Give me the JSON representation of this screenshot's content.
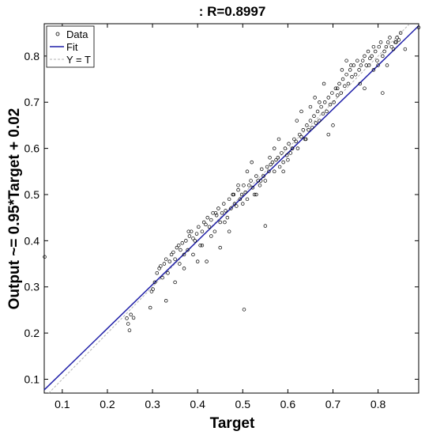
{
  "chart_data": {
    "type": "scatter",
    "title": ": R=0.8997",
    "xlabel": "Target",
    "ylabel": "Output ~= 0.95*Target + 0.02",
    "xlim": [
      0.06,
      0.89
    ],
    "ylim": [
      0.07,
      0.87
    ],
    "xticks": [
      0.1,
      0.2,
      0.3,
      0.4,
      0.5,
      0.6,
      0.7,
      0.8
    ],
    "yticks": [
      0.1,
      0.2,
      0.3,
      0.4,
      0.5,
      0.6,
      0.7,
      0.8
    ],
    "grid": false,
    "legend_position": "top-left",
    "legend": [
      "Data",
      "Fit",
      "Y = T"
    ],
    "colors": {
      "data": "#000000",
      "fit": "#1f1fa8",
      "identity": "#b4b4b4"
    },
    "fit": {
      "slope": 0.95,
      "intercept": 0.02
    },
    "series": [
      {
        "name": "Data",
        "x": [
          0.061,
          0.243,
          0.246,
          0.249,
          0.252,
          0.258,
          0.295,
          0.298,
          0.301,
          0.305,
          0.31,
          0.315,
          0.318,
          0.322,
          0.326,
          0.33,
          0.334,
          0.338,
          0.342,
          0.346,
          0.35,
          0.354,
          0.358,
          0.362,
          0.366,
          0.37,
          0.374,
          0.378,
          0.382,
          0.386,
          0.39,
          0.394,
          0.398,
          0.402,
          0.406,
          0.41,
          0.414,
          0.418,
          0.422,
          0.426,
          0.43,
          0.434,
          0.438,
          0.442,
          0.446,
          0.45,
          0.454,
          0.458,
          0.462,
          0.466,
          0.47,
          0.474,
          0.478,
          0.482,
          0.486,
          0.49,
          0.494,
          0.498,
          0.502,
          0.506,
          0.51,
          0.514,
          0.518,
          0.522,
          0.526,
          0.53,
          0.534,
          0.538,
          0.542,
          0.546,
          0.55,
          0.554,
          0.558,
          0.562,
          0.566,
          0.57,
          0.574,
          0.578,
          0.582,
          0.586,
          0.59,
          0.594,
          0.598,
          0.602,
          0.606,
          0.61,
          0.614,
          0.618,
          0.622,
          0.626,
          0.63,
          0.634,
          0.638,
          0.642,
          0.646,
          0.65,
          0.654,
          0.658,
          0.662,
          0.666,
          0.67,
          0.674,
          0.678,
          0.682,
          0.686,
          0.69,
          0.694,
          0.698,
          0.702,
          0.706,
          0.71,
          0.714,
          0.718,
          0.722,
          0.726,
          0.73,
          0.734,
          0.738,
          0.742,
          0.746,
          0.75,
          0.754,
          0.758,
          0.762,
          0.766,
          0.77,
          0.774,
          0.778,
          0.782,
          0.786,
          0.79,
          0.794,
          0.798,
          0.802,
          0.806,
          0.81,
          0.814,
          0.818,
          0.822,
          0.826,
          0.83,
          0.834,
          0.838,
          0.842,
          0.846,
          0.85,
          0.86,
          0.89,
          0.503,
          0.55,
          0.33,
          0.42,
          0.45,
          0.47,
          0.52,
          0.58,
          0.62,
          0.66,
          0.68,
          0.73,
          0.76,
          0.8,
          0.81,
          0.38,
          0.4,
          0.43,
          0.46,
          0.48,
          0.53,
          0.56,
          0.6,
          0.64,
          0.7,
          0.72,
          0.78,
          0.82,
          0.35,
          0.37,
          0.44,
          0.49,
          0.51,
          0.57,
          0.61,
          0.63,
          0.65,
          0.67,
          0.69,
          0.71,
          0.74,
          0.77,
          0.79,
          0.84,
          0.36,
          0.39,
          0.41,
          0.5,
          0.54,
          0.59
        ],
        "y": [
          0.365,
          0.232,
          0.22,
          0.206,
          0.24,
          0.233,
          0.255,
          0.29,
          0.295,
          0.31,
          0.33,
          0.34,
          0.345,
          0.32,
          0.35,
          0.36,
          0.33,
          0.355,
          0.37,
          0.375,
          0.36,
          0.385,
          0.39,
          0.38,
          0.395,
          0.37,
          0.4,
          0.38,
          0.41,
          0.42,
          0.405,
          0.4,
          0.415,
          0.43,
          0.39,
          0.42,
          0.44,
          0.435,
          0.45,
          0.43,
          0.445,
          0.46,
          0.42,
          0.455,
          0.47,
          0.44,
          0.46,
          0.48,
          0.465,
          0.45,
          0.49,
          0.47,
          0.5,
          0.48,
          0.475,
          0.51,
          0.49,
          0.5,
          0.52,
          0.505,
          0.49,
          0.52,
          0.53,
          0.515,
          0.5,
          0.54,
          0.53,
          0.52,
          0.555,
          0.54,
          0.53,
          0.56,
          0.55,
          0.565,
          0.57,
          0.55,
          0.575,
          0.58,
          0.56,
          0.59,
          0.57,
          0.6,
          0.585,
          0.61,
          0.59,
          0.6,
          0.62,
          0.615,
          0.6,
          0.63,
          0.625,
          0.64,
          0.62,
          0.65,
          0.64,
          0.66,
          0.645,
          0.67,
          0.655,
          0.68,
          0.66,
          0.69,
          0.675,
          0.7,
          0.68,
          0.71,
          0.695,
          0.72,
          0.7,
          0.73,
          0.715,
          0.74,
          0.72,
          0.75,
          0.735,
          0.76,
          0.74,
          0.77,
          0.755,
          0.78,
          0.76,
          0.79,
          0.77,
          0.78,
          0.79,
          0.8,
          0.78,
          0.81,
          0.795,
          0.8,
          0.82,
          0.81,
          0.79,
          0.82,
          0.83,
          0.8,
          0.81,
          0.82,
          0.83,
          0.84,
          0.82,
          0.815,
          0.83,
          0.84,
          0.835,
          0.85,
          0.815,
          0.862,
          0.251,
          0.432,
          0.27,
          0.355,
          0.385,
          0.42,
          0.57,
          0.62,
          0.66,
          0.71,
          0.74,
          0.79,
          0.74,
          0.78,
          0.72,
          0.42,
          0.355,
          0.41,
          0.44,
          0.5,
          0.5,
          0.58,
          0.575,
          0.62,
          0.65,
          0.77,
          0.78,
          0.78,
          0.31,
          0.34,
          0.46,
          0.52,
          0.55,
          0.6,
          0.6,
          0.68,
          0.69,
          0.7,
          0.63,
          0.73,
          0.78,
          0.73,
          0.77,
          0.83,
          0.35,
          0.37,
          0.39,
          0.48,
          0.53,
          0.55
        ]
      }
    ]
  }
}
